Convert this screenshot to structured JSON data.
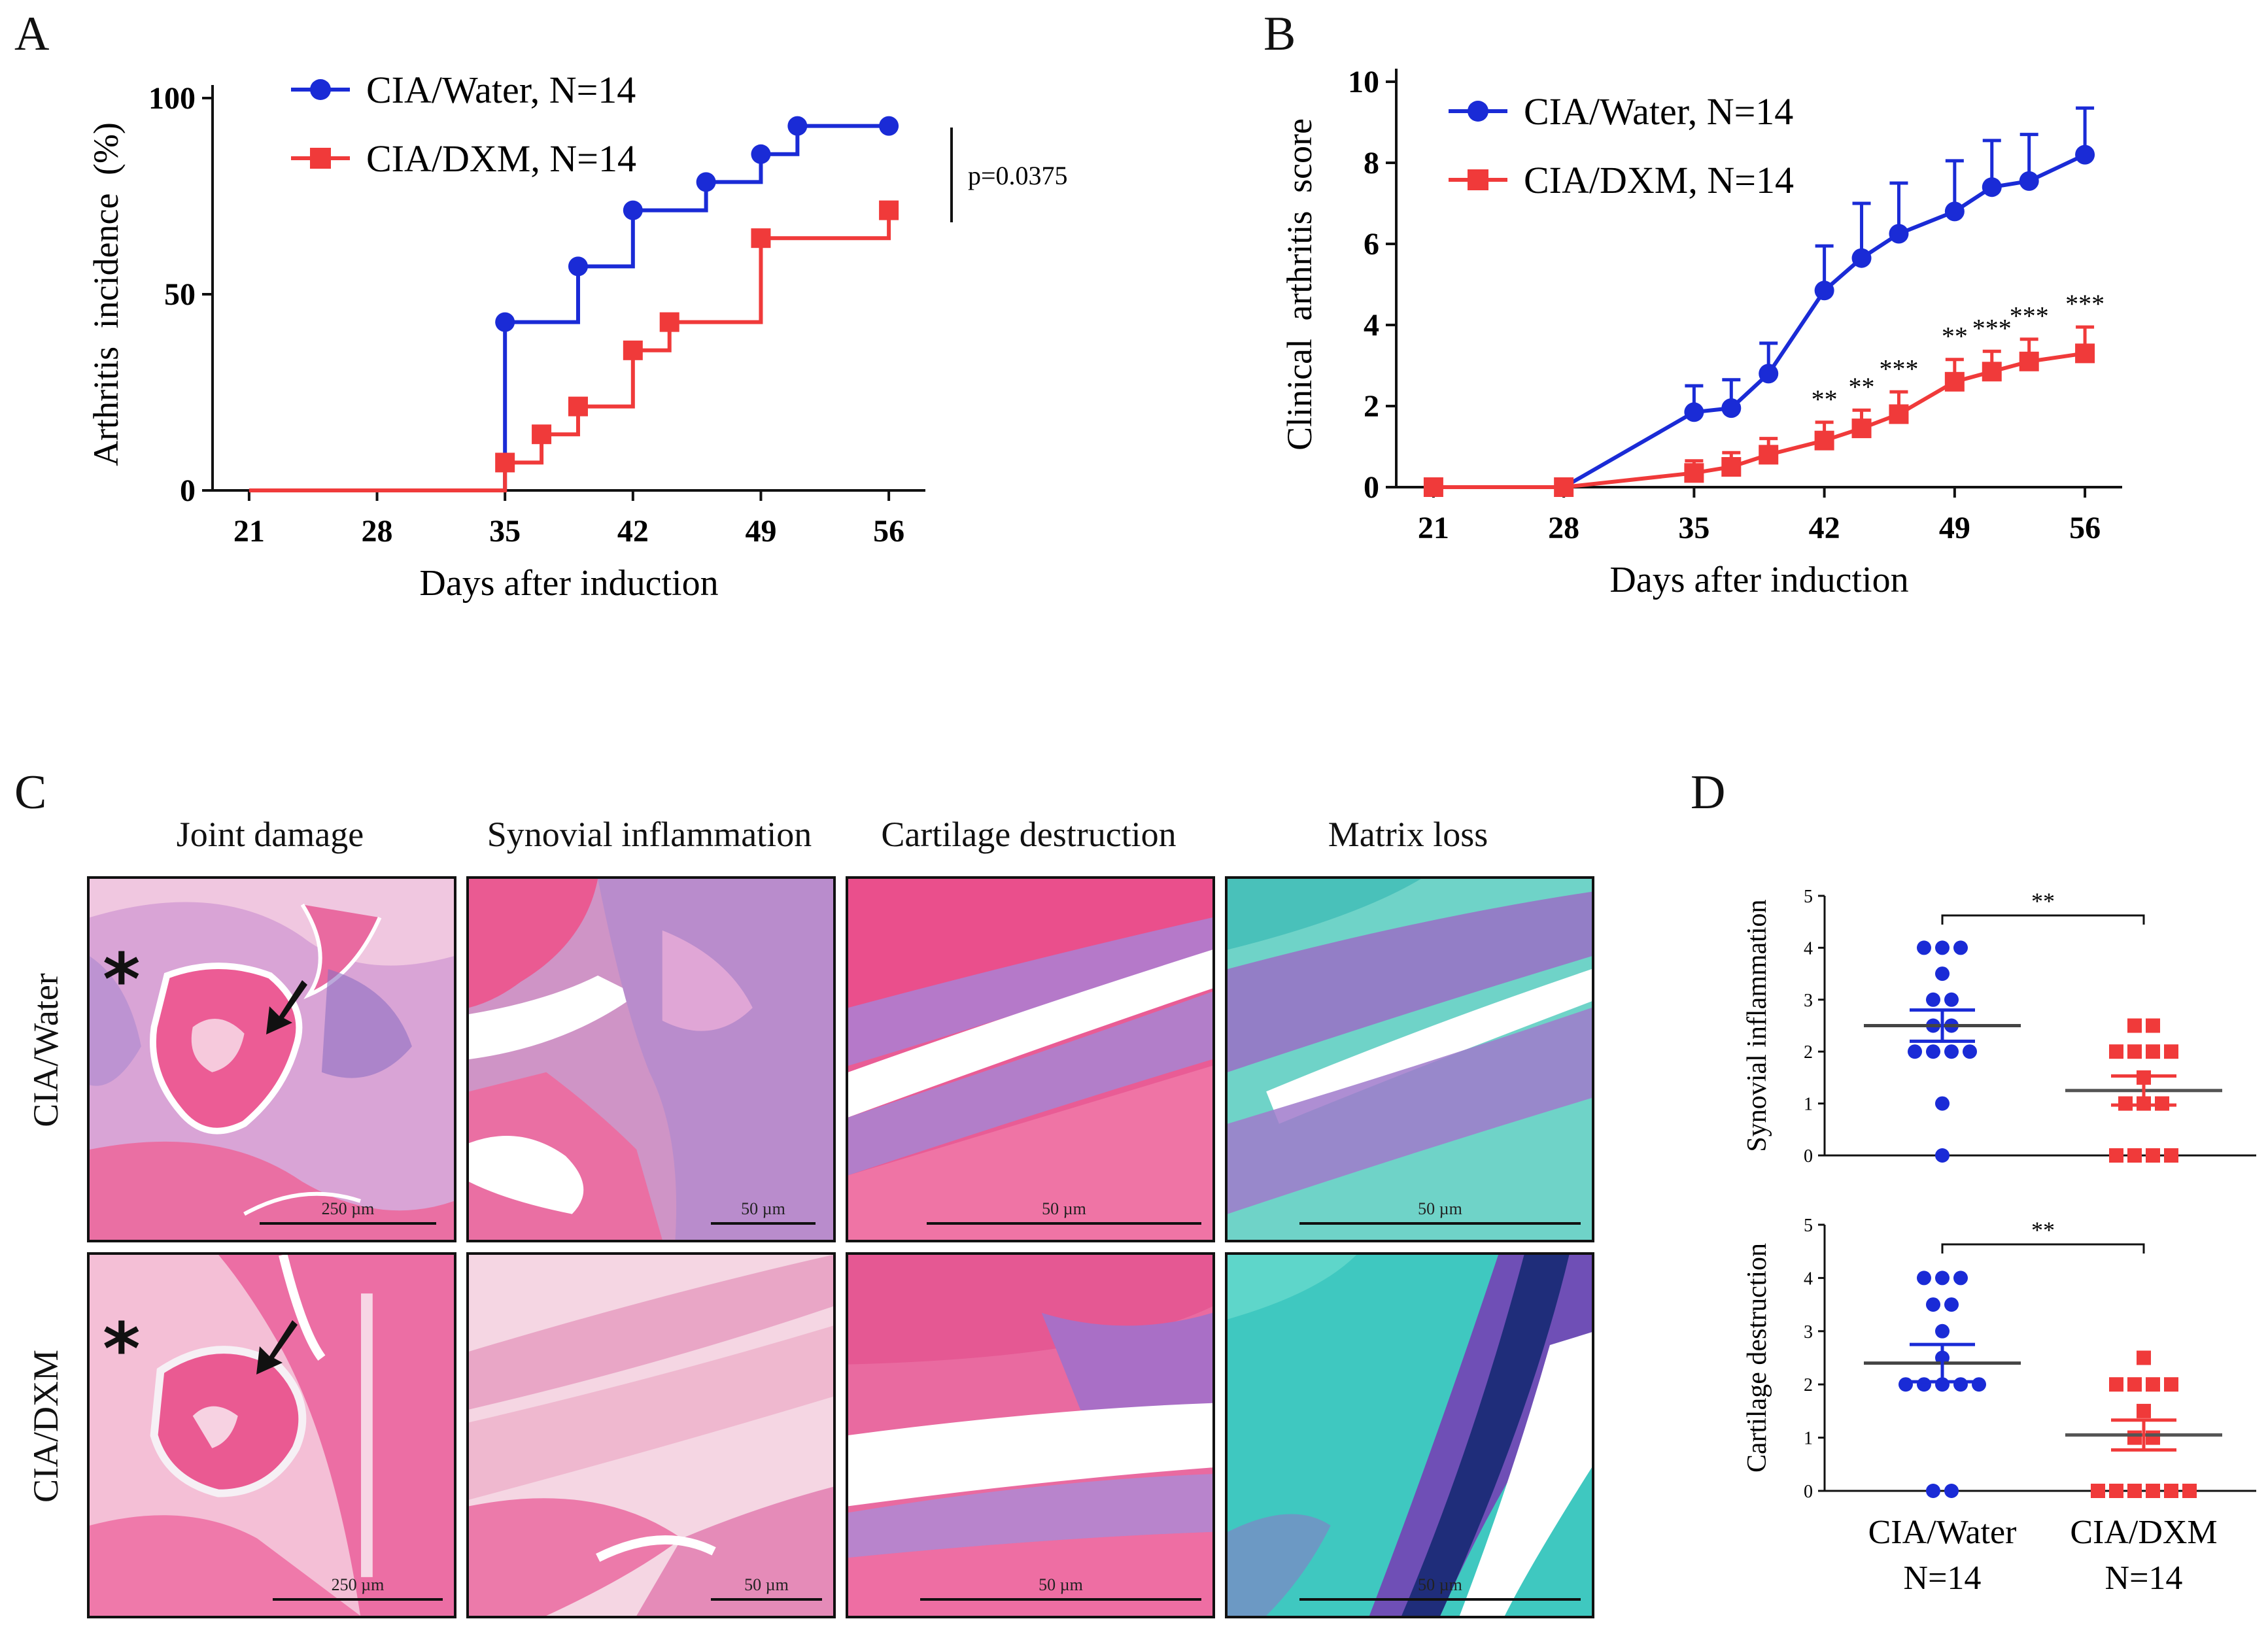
{
  "panel_letters": {
    "a": "A",
    "b": "B",
    "c": "C",
    "d": "D"
  },
  "colors": {
    "water": "#1a2bd6",
    "dxm": "#f03a3a",
    "he_pink": "#ea5a92",
    "purple": "#9a5fc4",
    "cyan": "#3ec7bf"
  },
  "chart_data": [
    {
      "id": "A",
      "type": "line",
      "step": true,
      "xlabel": "Days after induction",
      "ylabel": "Arthritis incidence (%)",
      "xlim": [
        19,
        58
      ],
      "ylim": [
        0,
        100
      ],
      "xticks": [
        21,
        28,
        35,
        42,
        49,
        56
      ],
      "yticks": [
        0,
        50,
        100
      ],
      "annotation": "p=0.0375",
      "series": [
        {
          "name": "CIA/Water, N=14",
          "color": "#1a2bd6",
          "marker": "circle",
          "x": [
            21,
            35,
            39,
            42,
            46,
            49,
            51,
            56
          ],
          "y": [
            0,
            42.9,
            57.1,
            71.4,
            78.6,
            85.7,
            92.9,
            92.9
          ]
        },
        {
          "name": "CIA/DXM, N=14",
          "color": "#f03a3a",
          "marker": "square",
          "x": [
            21,
            35,
            37,
            39,
            42,
            44,
            49,
            56
          ],
          "y": [
            0,
            7.1,
            14.3,
            21.4,
            35.7,
            42.9,
            64.3,
            71.4
          ]
        }
      ]
    },
    {
      "id": "B",
      "type": "line",
      "xlabel": "Days after induction",
      "ylabel": "Clinical arthritis score",
      "xlim": [
        19,
        58
      ],
      "ylim": [
        0,
        10
      ],
      "xticks": [
        21,
        28,
        35,
        42,
        49,
        56
      ],
      "yticks": [
        0,
        2,
        4,
        6,
        8,
        10
      ],
      "series": [
        {
          "name": "CIA/Water, N=14",
          "color": "#1a2bd6",
          "marker": "circle",
          "x": [
            21,
            28,
            35,
            37,
            39,
            42,
            44,
            46,
            49,
            51,
            53,
            56
          ],
          "y": [
            0,
            0,
            1.85,
            1.95,
            2.8,
            4.85,
            5.65,
            6.25,
            6.8,
            7.4,
            7.55,
            8.2
          ],
          "err": [
            0,
            0,
            0.65,
            0.7,
            0.75,
            1.1,
            1.35,
            1.25,
            1.25,
            1.15,
            1.15,
            1.15
          ]
        },
        {
          "name": "CIA/DXM, N=14",
          "color": "#f03a3a",
          "marker": "square",
          "x": [
            21,
            28,
            35,
            37,
            39,
            42,
            44,
            46,
            49,
            51,
            53,
            56
          ],
          "y": [
            0,
            0,
            0.35,
            0.5,
            0.8,
            1.15,
            1.45,
            1.8,
            2.6,
            2.85,
            3.1,
            3.3
          ],
          "err": [
            0,
            0,
            0.3,
            0.35,
            0.4,
            0.45,
            0.45,
            0.55,
            0.55,
            0.5,
            0.55,
            0.65
          ]
        }
      ],
      "significance": [
        {
          "x": 42,
          "label": "**"
        },
        {
          "x": 44,
          "label": "**"
        },
        {
          "x": 46,
          "label": "***"
        },
        {
          "x": 49,
          "label": "**"
        },
        {
          "x": 51,
          "label": "***"
        },
        {
          "x": 53,
          "label": "***"
        },
        {
          "x": 56,
          "label": "***"
        }
      ]
    },
    {
      "id": "D-top",
      "type": "scatter",
      "ylabel": "Synovial inflammation",
      "ylim": [
        0,
        5
      ],
      "yticks": [
        0,
        1,
        2,
        3,
        4,
        5
      ],
      "significance": "**",
      "groups": [
        {
          "name": "CIA/Water",
          "color": "#1a2bd6",
          "marker": "circle",
          "mean": 2.5,
          "sem": 0.3,
          "values": [
            4,
            4,
            4,
            3.5,
            3,
            3,
            2.5,
            2.5,
            2,
            2,
            2,
            2,
            1,
            0
          ]
        },
        {
          "name": "CIA/DXM",
          "color": "#f03a3a",
          "marker": "square",
          "mean": 1.25,
          "sem": 0.28,
          "values": [
            2.5,
            2.5,
            2,
            2,
            2,
            2,
            1.5,
            1,
            1,
            1,
            0,
            0,
            0,
            0
          ]
        }
      ]
    },
    {
      "id": "D-bottom",
      "type": "scatter",
      "ylabel": "Cartilage destruction",
      "ylim": [
        0,
        5
      ],
      "yticks": [
        0,
        1,
        2,
        3,
        4,
        5
      ],
      "significance": "**",
      "groups": [
        {
          "name": "CIA/Water",
          "color": "#1a2bd6",
          "marker": "circle",
          "mean": 2.4,
          "sem": 0.35,
          "values": [
            4,
            4,
            4,
            3.5,
            3.5,
            3,
            2.5,
            2,
            2,
            2,
            2,
            2,
            0,
            0
          ]
        },
        {
          "name": "CIA/DXM",
          "color": "#f03a3a",
          "marker": "square",
          "mean": 1.05,
          "sem": 0.28,
          "values": [
            2.5,
            2,
            2,
            2,
            2,
            1.5,
            1,
            1,
            0,
            0,
            0,
            0,
            0,
            0
          ]
        }
      ]
    }
  ],
  "panel_d_xlabels": [
    {
      "line1": "CIA/Water",
      "line2": "N=14"
    },
    {
      "line1": "CIA/DXM",
      "line2": "N=14"
    }
  ],
  "panel_c": {
    "columns": [
      "Joint damage",
      "Synovial inflammation",
      "Cartilage destruction",
      "Matrix loss"
    ],
    "rows": [
      "CIA/Water",
      "CIA/DXM"
    ],
    "scale_bars": [
      "250 µm",
      "50 µm",
      "50 µm",
      "50 µm"
    ],
    "asterisk": "*"
  }
}
